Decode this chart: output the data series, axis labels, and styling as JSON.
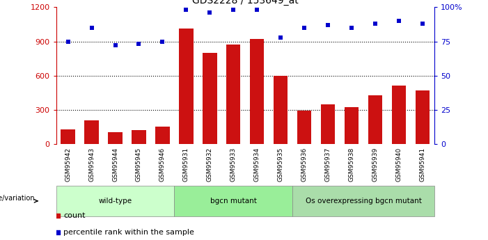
{
  "title": "GDS2228 / 153649_at",
  "samples": [
    "GSM95942",
    "GSM95943",
    "GSM95944",
    "GSM95945",
    "GSM95946",
    "GSM95931",
    "GSM95932",
    "GSM95933",
    "GSM95934",
    "GSM95935",
    "GSM95936",
    "GSM95937",
    "GSM95938",
    "GSM95939",
    "GSM95940",
    "GSM95941"
  ],
  "counts": [
    130,
    210,
    105,
    125,
    155,
    1010,
    800,
    870,
    920,
    600,
    290,
    345,
    325,
    430,
    510,
    470
  ],
  "percentiles": [
    75,
    85,
    72,
    73,
    75,
    98,
    96,
    98,
    98,
    78,
    85,
    87,
    85,
    88,
    90,
    88
  ],
  "groups": [
    {
      "label": "wild-type",
      "start": 0,
      "end": 5,
      "color": "#ccffcc"
    },
    {
      "label": "bgcn mutant",
      "start": 5,
      "end": 10,
      "color": "#99ee99"
    },
    {
      "label": "Os overexpressing bgcn mutant",
      "start": 10,
      "end": 16,
      "color": "#aaddaa"
    }
  ],
  "bar_color": "#cc1111",
  "scatter_color": "#0000cc",
  "ylim_left": [
    0,
    1200
  ],
  "ylim_right": [
    0,
    100
  ],
  "yticks_left": [
    0,
    300,
    600,
    900,
    1200
  ],
  "yticks_right": [
    0,
    25,
    50,
    75,
    100
  ],
  "yticklabels_right": [
    "0",
    "25",
    "50",
    "75",
    "100%"
  ],
  "bar_color_label": "#cc0000",
  "ylabel_right_color": "#0000cc",
  "genotype_label": "genotype/variation",
  "legend_count_label": "count",
  "legend_percentile_label": "percentile rank within the sample",
  "xtick_bg": "#cccccc",
  "group_border_color": "#888888"
}
